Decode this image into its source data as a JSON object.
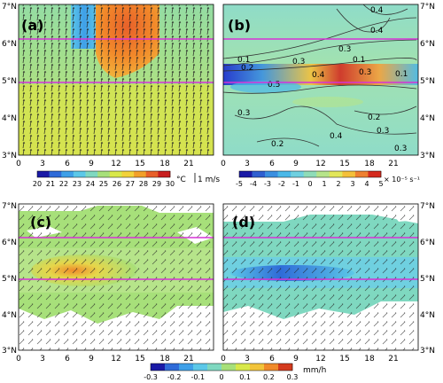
{
  "panels": [
    {
      "id": "a",
      "label": "(a)"
    },
    {
      "id": "b",
      "label": "(b)"
    },
    {
      "id": "c",
      "label": "(c)"
    },
    {
      "id": "d",
      "label": "(d)"
    }
  ],
  "y_ticks": [
    "7°N",
    "6°N",
    "5°N",
    "4°N",
    "3°N"
  ],
  "x_ticks": [
    "0",
    "3",
    "6",
    "9",
    "12",
    "15",
    "18",
    "21"
  ],
  "colorbar_temp": {
    "labels": [
      "20",
      "21",
      "22",
      "23",
      "24",
      "25",
      "26",
      "27",
      "28",
      "29",
      "30"
    ],
    "unit": "°C",
    "colors": [
      "#1a1aa6",
      "#2f6bd8",
      "#3fa0e8",
      "#5cc8e8",
      "#7fd8c0",
      "#a7e07a",
      "#d8e84a",
      "#f2d23a",
      "#f2a02a",
      "#e8602a",
      "#c81e1e"
    ]
  },
  "vector_key": "1 m/s",
  "colorbar_vort": {
    "labels": [
      "-5",
      "-4",
      "-3",
      "-2",
      "-1",
      "0",
      "1",
      "2",
      "3",
      "4",
      "5"
    ],
    "unit": "× 10⁻⁵ s⁻¹",
    "colors": [
      "#1a1aa6",
      "#2f5fd0",
      "#3a8fe0",
      "#4ab8e8",
      "#6fd0e0",
      "#8fdcb8",
      "#b6e48a",
      "#e2e65a",
      "#f4c03a",
      "#ee8030",
      "#d42a1e"
    ]
  },
  "colorbar_rain": {
    "labels": [
      "-0.3",
      "-0.2",
      "-0.1",
      "0",
      "0.1",
      "0.2",
      "0.3"
    ],
    "unit": "mm/h",
    "colors": [
      "#1a1aa6",
      "#2f6bd8",
      "#3fa0e8",
      "#5cc8e8",
      "#7fd8c0",
      "#a7e07a",
      "#d8e84a",
      "#f2c43a",
      "#f08a2a",
      "#d43a1e"
    ]
  },
  "contour_labels_b": [
    "0.4",
    "0.4",
    "0.3",
    "0.1",
    "0.2",
    "0.3",
    "0.1",
    "0.4",
    "0.3",
    "0.2",
    "0.1",
    "0.5",
    "0.3",
    "0.2",
    "0.4",
    "0.3",
    "0.3"
  ],
  "colors": {
    "magenta_line": "#d633d6",
    "contour": "#333333",
    "arrow": "#222222"
  }
}
